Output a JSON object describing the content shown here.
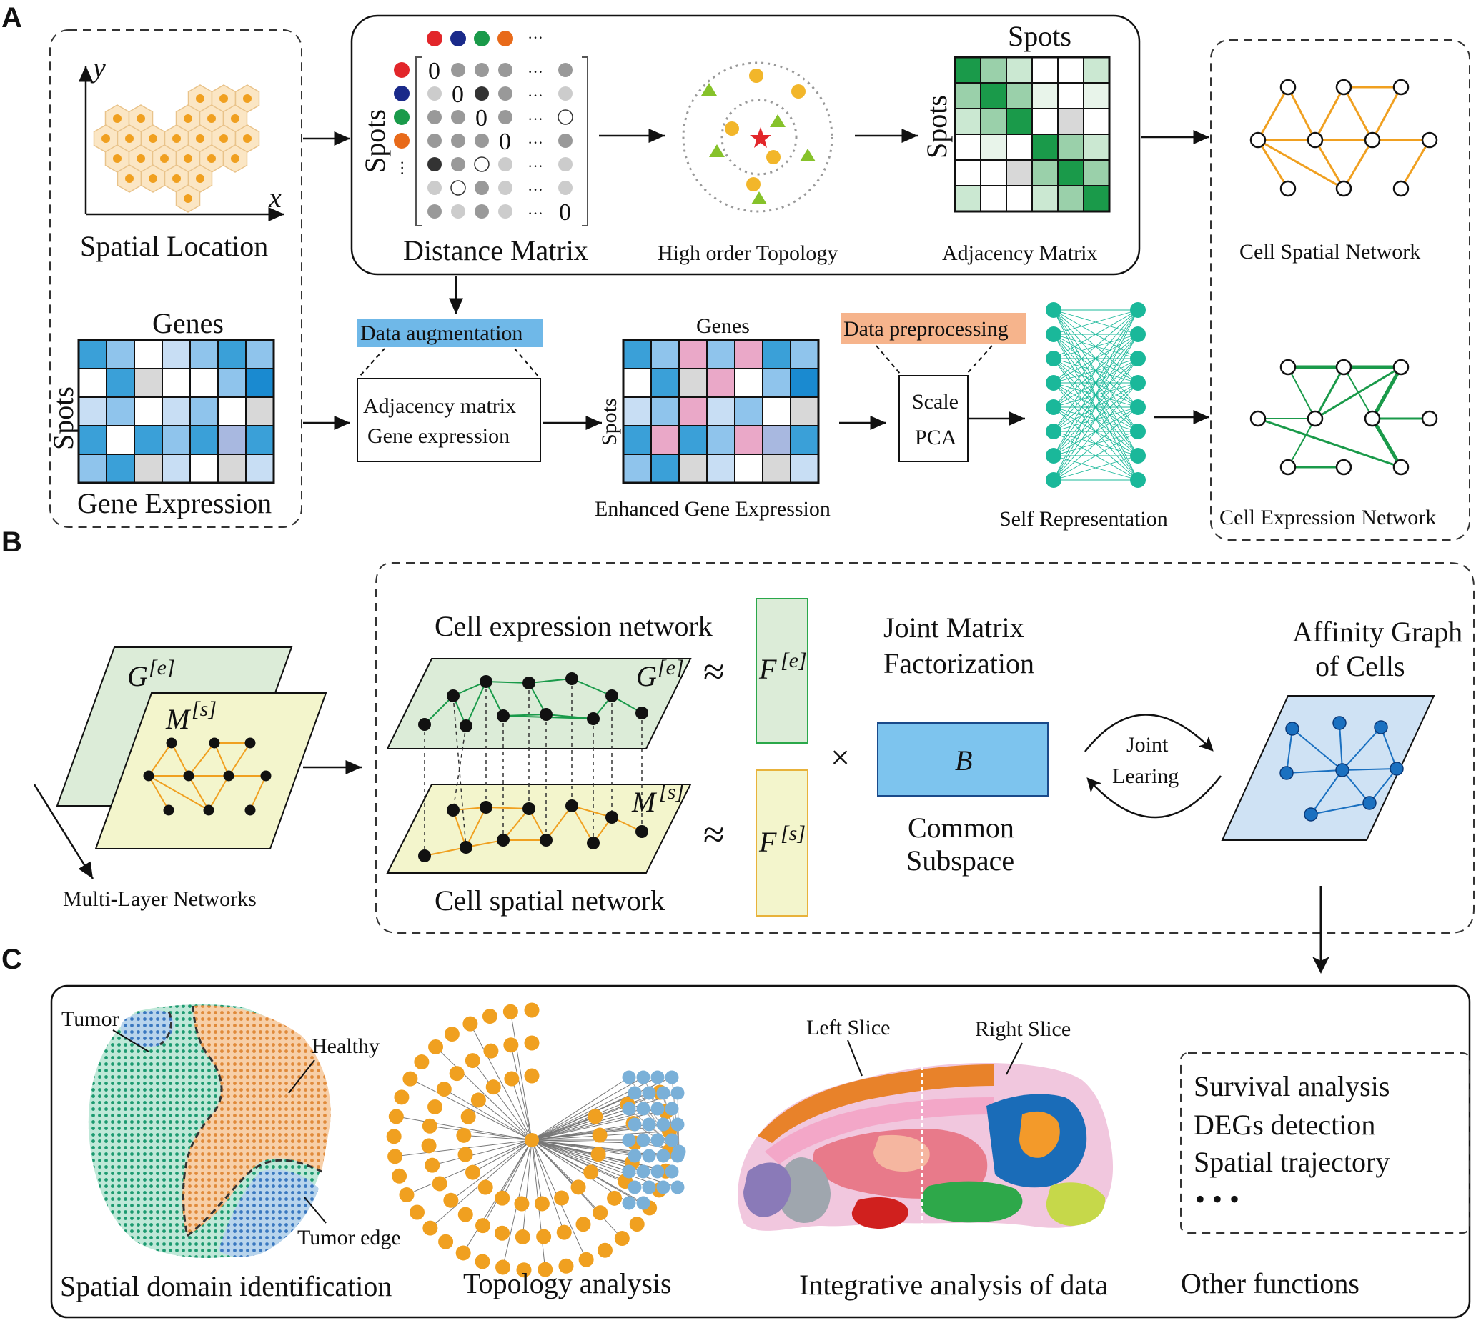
{
  "panels": {
    "a": "A",
    "b": "B",
    "c": "C"
  },
  "section_a": {
    "spatial_location": "Spatial Location",
    "axis_x": "x",
    "axis_y": "y",
    "genes_label": "Genes",
    "spots_label": "Spots",
    "gene_expression": "Gene Expression",
    "distance_matrix": "Distance Matrix",
    "matrix_zero": "0",
    "ellipsis": "···",
    "spots_vdots": "···",
    "high_order_topology": "High order Topology",
    "adjacency_spots_top": "Spots",
    "adjacency_spots_left": "Spots",
    "adjacency_matrix": "Adjacency Matrix",
    "cell_spatial_network": "Cell Spatial Network",
    "data_augmentation": "Data augmentation",
    "aug_line1": "Adjacency matrix",
    "aug_line2": "Gene expression",
    "enh_genes": "Genes",
    "enh_spots": "Spots",
    "enhanced_gene_expression": "Enhanced Gene Expression",
    "data_preprocessing": "Data preprocessing",
    "scale": "Scale",
    "pca": "PCA",
    "self_representation": "Self Representation",
    "cell_expression_network": "Cell Expression Network"
  },
  "section_b": {
    "g_e": "G",
    "g_e_sup": "[e]",
    "m_s": "M",
    "m_s_sup": "[s]",
    "multi_layer": "Multi-Layer Networks",
    "cell_expression_network": "Cell expression network",
    "cell_spatial_network": "Cell spatial network",
    "approx": "≈",
    "f_e": "F",
    "f_e_sup": "[e]",
    "f_s": "F",
    "f_s_sup": "[s]",
    "times": "×",
    "joint_mf_1": "Joint Matrix",
    "joint_mf_2": "Factorization",
    "b_label": "B",
    "common_1": "Common",
    "common_2": "Subspace",
    "joint_1": "Joint",
    "joint_2": "Learing",
    "affinity_1": "Affinity Graph",
    "affinity_2": "of Cells"
  },
  "section_c": {
    "tumor": "Tumor",
    "healthy": "Healthy",
    "tumor_edge": "Tumor edge",
    "spatial_domain": "Spatial domain identification",
    "topology": "Topology analysis",
    "left_slice": "Left Slice",
    "right_slice": "Right Slice",
    "integrative": "Integrative analysis of data",
    "functions": [
      "Survival analysis",
      "DEGs detection",
      "Spatial trajectory"
    ],
    "more": "• • •",
    "other_functions": "Other functions"
  },
  "colors": {
    "orange": "#f0a020",
    "green": "#1a9a4a",
    "teal": "#1ab89a",
    "blue_cell": "#1a70c0",
    "aug_box": "#6fb8e8",
    "prep_box": "#f6b48c",
    "b_box": "#7dc4ee"
  }
}
